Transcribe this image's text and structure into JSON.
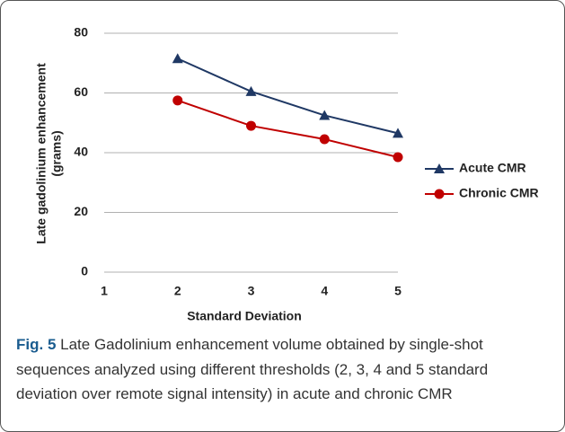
{
  "chart_data": {
    "type": "line",
    "x": [
      2,
      3,
      4,
      5
    ],
    "series": [
      {
        "name": "Acute CMR",
        "color": "#1f3864",
        "marker": "triangle",
        "values": [
          71.5,
          60.5,
          52.5,
          46.5
        ]
      },
      {
        "name": "Chronic CMR",
        "color": "#c00000",
        "marker": "circle",
        "values": [
          57.5,
          49,
          44.5,
          38.5
        ]
      }
    ],
    "xlabel": "Standard Deviation",
    "ylabel": [
      "Late gadolinium enhancement",
      "(grams)"
    ],
    "xlim": [
      1,
      5
    ],
    "xticks": [
      1,
      2,
      3,
      4,
      5
    ],
    "ylim": [
      0,
      80
    ],
    "yticks": [
      0,
      20,
      40,
      60,
      80
    ],
    "grid": true,
    "legend": "right"
  },
  "caption": {
    "label": "Fig. 5",
    "text": "Late Gadolinium enhancement volume obtained by single-shot sequences analyzed using different thresholds (2, 3, 4 and 5 standard deviation over remote signal intensity) in acute and chronic CMR"
  }
}
